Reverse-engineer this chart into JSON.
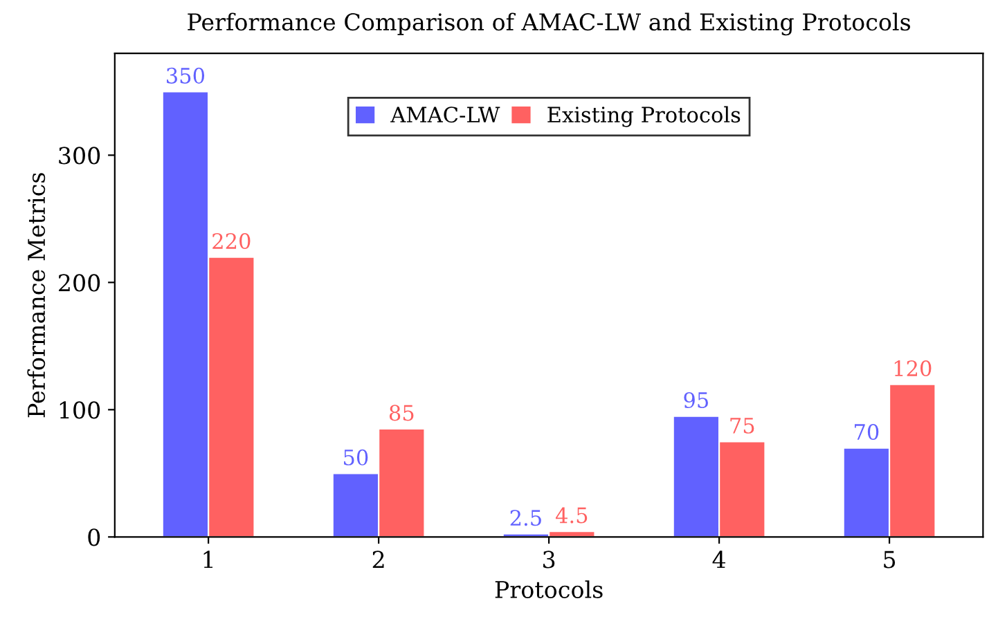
{
  "chart_data": {
    "type": "bar",
    "title": "Performance Comparison of AMAC-LW and Existing Protocols",
    "xlabel": "Protocols",
    "ylabel": "Performance Metrics",
    "categories": [
      "1",
      "2",
      "3",
      "4",
      "5"
    ],
    "series": [
      {
        "name": "AMAC-LW",
        "color": "#6161ff",
        "values": [
          350,
          50,
          2.5,
          95,
          70
        ]
      },
      {
        "name": "Existing Protocols",
        "color": "#ff6161",
        "values": [
          220,
          85,
          4.5,
          75,
          120
        ]
      }
    ],
    "ylim": [
      0,
      380
    ],
    "yticks": [
      0,
      100,
      200,
      300
    ],
    "data_labels": true,
    "legend": "top",
    "grid": false
  }
}
